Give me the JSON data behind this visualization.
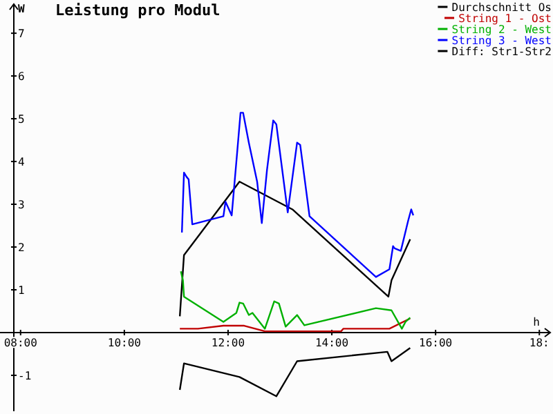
{
  "chart_data": {
    "type": "line",
    "title": "Leistung pro Modul",
    "xlabel": "h",
    "ylabel": "W",
    "xlim": [
      7.87,
      18.21
    ],
    "ylim": [
      -1.84,
      7.68
    ],
    "xticks": [
      {
        "value": 8,
        "label": "08:00"
      },
      {
        "value": 10,
        "label": "10:00"
      },
      {
        "value": 12,
        "label": "12:00"
      },
      {
        "value": 14,
        "label": "14:00"
      },
      {
        "value": 16,
        "label": "16:00"
      },
      {
        "value": 18,
        "label": "18:"
      }
    ],
    "yticks": [
      -1,
      1,
      2,
      3,
      4,
      5,
      6,
      7
    ],
    "grid": false,
    "legend": "top right",
    "marker": "none",
    "line_style": "solid",
    "series": [
      {
        "name": "Durchschnitt Os",
        "color": "#000000",
        "x": [
          11.07,
          11.15,
          12.22,
          13.24,
          15.09,
          15.15,
          15.51
        ],
        "values": [
          0.38,
          1.81,
          3.53,
          2.88,
          0.84,
          1.22,
          2.18
        ]
      },
      {
        "name": "String 1 - Ost",
        "color": "#c00000",
        "x": [
          11.07,
          11.42,
          11.91,
          12.31,
          12.71,
          14.18,
          14.22,
          15.11,
          15.51
        ],
        "values": [
          0.09,
          0.09,
          0.16,
          0.16,
          0.03,
          0.03,
          0.09,
          0.09,
          0.33
        ]
      },
      {
        "name": "String 2 - West",
        "color": "#00b000",
        "x": [
          11.09,
          11.13,
          11.15,
          11.91,
          12.16,
          12.22,
          12.29,
          12.4,
          12.47,
          12.71,
          12.89,
          12.98,
          13.11,
          13.33,
          13.47,
          14.85,
          15.15,
          15.35,
          15.42,
          15.51
        ],
        "values": [
          1.43,
          1.22,
          0.84,
          0.25,
          0.46,
          0.7,
          0.68,
          0.41,
          0.46,
          0.09,
          0.73,
          0.68,
          0.14,
          0.41,
          0.17,
          0.57,
          0.52,
          0.09,
          0.25,
          0.35
        ]
      },
      {
        "name": "String 3 - West",
        "color": "#0000ff",
        "x": [
          11.11,
          11.15,
          11.2,
          11.24,
          11.31,
          11.91,
          11.95,
          12.07,
          12.18,
          12.24,
          12.29,
          12.4,
          12.56,
          12.65,
          12.75,
          12.87,
          12.93,
          13.15,
          13.33,
          13.39,
          13.57,
          14.85,
          15.11,
          15.18,
          15.21,
          15.33,
          15.47,
          15.53,
          15.57
        ],
        "values": [
          2.34,
          3.74,
          3.64,
          3.58,
          2.53,
          2.72,
          3.06,
          2.74,
          4.28,
          5.14,
          5.14,
          4.44,
          3.53,
          2.56,
          3.8,
          4.96,
          4.87,
          2.81,
          4.44,
          4.39,
          2.72,
          1.3,
          1.48,
          2.02,
          1.97,
          1.91,
          2.61,
          2.88,
          2.74
        ]
      },
      {
        "name": "Diff: Str1-Str2",
        "color": "#000000",
        "x": [
          11.07,
          11.15,
          12.22,
          12.93,
          13.33,
          15.07,
          15.15,
          15.51
        ],
        "values": [
          -1.34,
          -0.72,
          -1.04,
          -1.49,
          -0.67,
          -0.45,
          -0.67,
          -0.36
        ]
      }
    ]
  }
}
